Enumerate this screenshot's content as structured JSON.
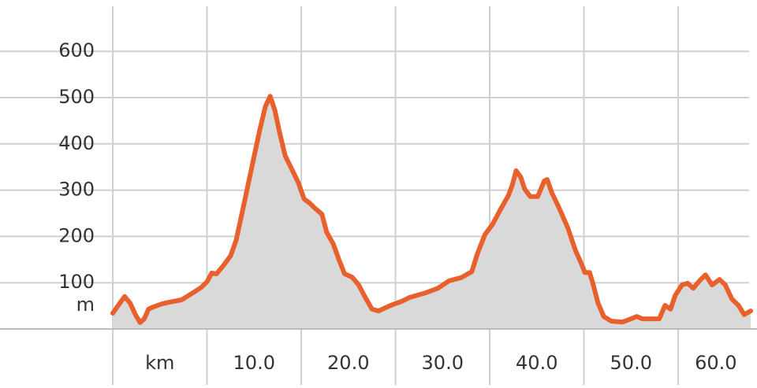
{
  "chart_data": {
    "type": "area",
    "x": [
      0,
      0.75,
      1.26,
      1.84,
      2.4,
      2.9,
      3.35,
      3.8,
      4.35,
      5.2,
      6.0,
      7.3,
      8.5,
      9.4,
      10.0,
      10.5,
      11.0,
      11.7,
      12.5,
      13.1,
      14.0,
      14.8,
      15.6,
      16.2,
      16.7,
      17.2,
      17.7,
      18.3,
      19.0,
      19.7,
      20.3,
      20.9,
      21.5,
      22.2,
      22.7,
      23.4,
      24.0,
      24.6,
      25.4,
      26.1,
      26.8,
      27.5,
      28.2,
      29.5,
      30.7,
      31.5,
      33.2,
      34.5,
      35.7,
      37.0,
      38.1,
      38.7,
      39.5,
      40.3,
      41.2,
      42.0,
      42.4,
      42.8,
      43.3,
      43.7,
      44.3,
      45.1,
      45.8,
      46.1,
      46.6,
      47.4,
      48.3,
      49.1,
      49.8,
      50.1,
      50.6,
      50.9,
      51.5,
      52.1,
      52.9,
      54.1,
      55.0,
      55.6,
      56.2,
      57.3,
      58.0,
      58.6,
      59.2,
      59.7,
      60.4,
      61.0,
      61.6,
      62.3,
      62.9,
      63.6,
      64.4,
      65.0,
      65.7,
      66.4,
      67.0,
      67.7
    ],
    "series": [
      {
        "color": "#e8612c",
        "fill": "#d9d9d9",
        "values": [
          34,
          56,
          70,
          56,
          31,
          14,
          22,
          43,
          48,
          54,
          58,
          63,
          78,
          90,
          102,
          121,
          119,
          136,
          158,
          192,
          277,
          354,
          430,
          481,
          503,
          473,
          425,
          374,
          345,
          316,
          281,
          272,
          260,
          248,
          209,
          184,
          150,
          119,
          112,
          95,
          68,
          43,
          39,
          51,
          60,
          68,
          78,
          88,
          104,
          111,
          124,
          163,
          204,
          226,
          260,
          289,
          311,
          342,
          328,
          303,
          286,
          286,
          320,
          323,
          294,
          260,
          218,
          170,
          138,
          122,
          122,
          102,
          56,
          27,
          17,
          15,
          22,
          27,
          22,
          22,
          22,
          51,
          43,
          73,
          95,
          99,
          88,
          105,
          117,
          95,
          107,
          95,
          65,
          51,
          31,
          39
        ]
      }
    ],
    "xlim": [
      0,
      68
    ],
    "xticks": [
      {
        "value": 0,
        "label": "km"
      },
      {
        "value": 10,
        "label": "10.0"
      },
      {
        "value": 20,
        "label": "20.0"
      },
      {
        "value": 30,
        "label": "30.0"
      },
      {
        "value": 40,
        "label": "40.0"
      },
      {
        "value": 50,
        "label": "50.0"
      },
      {
        "value": 60,
        "label": "60.0"
      }
    ],
    "ylim": [
      0,
      700
    ],
    "yticks": [
      100,
      200,
      300,
      400,
      500,
      600
    ],
    "y_unit": "m",
    "grid": true
  }
}
